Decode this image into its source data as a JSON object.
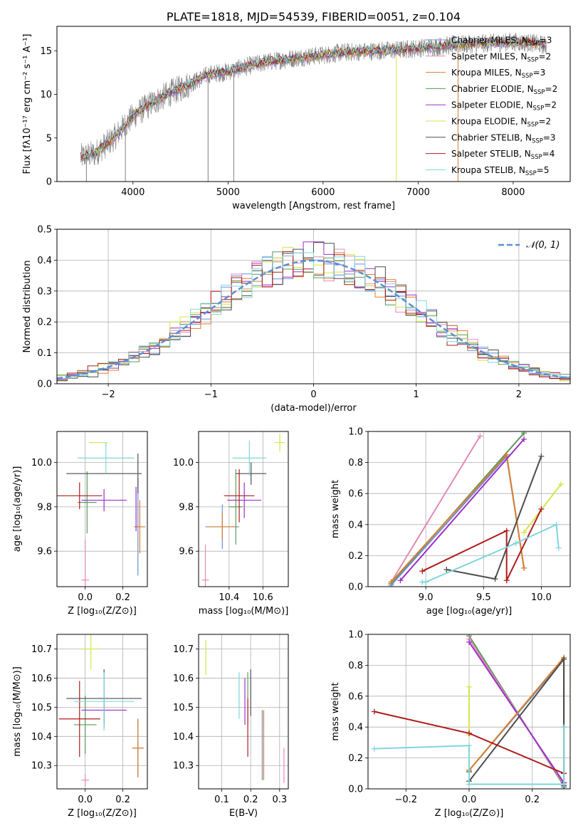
{
  "chart_data": [
    {
      "id": "spectrum",
      "type": "line",
      "title": "PLATE=1818, MJD=54539, FIBERID=0051, z=0.104",
      "xlabel": "wavelength [Angstrom, rest frame]",
      "ylabel": "Flux [fλ10⁻¹⁷ erg cm⁻² s⁻¹ A⁻¹]",
      "xlim": [
        3200,
        8600
      ],
      "ylim": [
        0,
        17.8
      ],
      "xticks": [
        "4000",
        "5000",
        "6000",
        "7000",
        "8000"
      ],
      "yticks": [
        "0",
        "5",
        "10",
        "15"
      ],
      "grid": false,
      "legend_position": "right",
      "legend": [
        {
          "label": "Chabrier MILES, N",
          "sub": "SSP",
          "tail": "=3",
          "color": "#6a8fd4"
        },
        {
          "label": "Salpeter MILES, N",
          "sub": "SSP",
          "tail": "=2",
          "color": "#e589b6"
        },
        {
          "label": "Kroupa MILES, N",
          "sub": "SSP",
          "tail": "=3",
          "color": "#d9802b"
        },
        {
          "label": "Chabrier ELODIE, N",
          "sub": "SSP",
          "tail": "=2",
          "color": "#5a9a5a"
        },
        {
          "label": "Salpeter ELODIE, N",
          "sub": "SSP",
          "tail": "=2",
          "color": "#9b30c9"
        },
        {
          "label": "Kroupa ELODIE, N",
          "sub": "SSP",
          "tail": "=2",
          "color": "#d4e64a"
        },
        {
          "label": "Chabrier STELIB, N",
          "sub": "SSP",
          "tail": "=3",
          "color": "#4d4d4d"
        },
        {
          "label": "Salpeter STELIB, N",
          "sub": "SSP",
          "tail": "=4",
          "color": "#b01c1c"
        },
        {
          "label": "Kroupa STELIB, N",
          "sub": "SSP",
          "tail": "=5",
          "color": "#7fd6dc"
        }
      ],
      "series": [
        {
          "name": "data",
          "color": "#808080",
          "x": [
            3450,
            3600,
            3800,
            4000,
            4200,
            4400,
            4600,
            4800,
            5000,
            5200,
            5400,
            5600,
            5800,
            6000,
            6200,
            6400,
            6600,
            6800,
            7000,
            7200,
            7400,
            7600,
            7800,
            8000,
            8200,
            8350
          ],
          "y": [
            2.8,
            3.2,
            5.0,
            7.5,
            9.0,
            10.2,
            11.2,
            12.3,
            12.6,
            13.2,
            13.7,
            14.0,
            14.3,
            14.5,
            14.8,
            14.9,
            15.0,
            15.1,
            15.3,
            15.5,
            15.7,
            15.8,
            15.9,
            16.0,
            15.9,
            15.6
          ]
        }
      ]
    },
    {
      "id": "residuals",
      "type": "line",
      "xlabel": "(data-model)/error",
      "ylabel": "Normed distribution",
      "xlim": [
        -2.5,
        2.5
      ],
      "ylim": [
        0,
        0.5
      ],
      "xticks": [
        "−2",
        "−1",
        "0",
        "1",
        "2"
      ],
      "yticks": [
        "0.0",
        "0.1",
        "0.2",
        "0.3",
        "0.4",
        "0.5"
      ],
      "grid": true,
      "legend_position": "top-right",
      "legend_label": "𝒩(0, 1)",
      "normal_color": "#5b8fd8",
      "bin_width": 0.1,
      "series": [
        {
          "color": "#6a8fd4",
          "shift": 0.01
        },
        {
          "color": "#e589b6",
          "shift": -0.02
        },
        {
          "color": "#d9802b",
          "shift": 0.03
        },
        {
          "color": "#5a9a5a",
          "shift": -0.01
        },
        {
          "color": "#9b30c9",
          "shift": 0.02
        },
        {
          "color": "#d4e64a",
          "shift": -0.03
        },
        {
          "color": "#4d4d4d",
          "shift": 0.04
        },
        {
          "color": "#b01c1c",
          "shift": -0.04
        },
        {
          "color": "#7fd6dc",
          "shift": 0.0
        }
      ]
    },
    {
      "id": "z-age",
      "type": "scatter",
      "xlabel": "Z [log₁₀(Z/Z⊙)]",
      "ylabel": "age  [log₁₀(age/yr)]",
      "xlim": [
        -0.15,
        0.33
      ],
      "ylim": [
        9.44,
        10.14
      ],
      "xticks": [
        {
          "v": 0.0,
          "t": "0.0"
        },
        {
          "v": 0.2,
          "t": "0.2"
        }
      ],
      "yticks": [
        {
          "v": 9.6,
          "t": "9.6"
        },
        {
          "v": 9.8,
          "t": "9.8"
        },
        {
          "v": 10.0,
          "t": "10.0"
        }
      ],
      "grid": true,
      "points": [
        {
          "x": 0.0,
          "y": 9.47,
          "ex": 0.02,
          "ey": 0.18,
          "color": "#e589b6"
        },
        {
          "x": 0.28,
          "y": 9.71,
          "ex": 0.02,
          "ey": 0.22,
          "color": "#6a8fd4"
        },
        {
          "x": 0.29,
          "y": 9.71,
          "ex": 0.03,
          "ey": 0.12,
          "color": "#d9802b"
        },
        {
          "x": 0.01,
          "y": 9.82,
          "ex": 0.05,
          "ey": 0.14,
          "color": "#5a9a5a"
        },
        {
          "x": 0.1,
          "y": 9.83,
          "ex": 0.12,
          "ey": 0.05,
          "color": "#9b30c9"
        },
        {
          "x": 0.07,
          "y": 10.09,
          "ex": 0.05,
          "ey": 0.0,
          "color": "#d4e64a"
        },
        {
          "x": 0.1,
          "y": 9.95,
          "ex": 0.2,
          "ey": 0.0,
          "color": "#4d4d4d"
        },
        {
          "x": -0.03,
          "y": 9.85,
          "ex": 0.12,
          "ey": 0.06,
          "color": "#b01c1c"
        },
        {
          "x": 0.11,
          "y": 10.02,
          "ex": 0.15,
          "ey": 0.07,
          "color": "#7fd6dc"
        },
        {
          "x": 0.28,
          "y": 9.95,
          "ex": 0.0,
          "ey": 0.09,
          "color": "#4d4d4d"
        },
        {
          "x": 0.27,
          "y": 9.79,
          "ex": 0.0,
          "ey": 0.1,
          "color": "#9b30c9"
        }
      ]
    },
    {
      "id": "mass-age",
      "type": "scatter",
      "xlabel": "mass [log₁₀(M/M⊙)]",
      "ylabel": "",
      "xlim": [
        10.22,
        10.75
      ],
      "ylim": [
        9.44,
        10.14
      ],
      "xticks": [
        {
          "v": 10.4,
          "t": "10.4"
        },
        {
          "v": 10.6,
          "t": "10.6"
        }
      ],
      "yticks": [
        {
          "v": 9.6,
          "t": "9.6"
        },
        {
          "v": 9.8,
          "t": "9.8"
        },
        {
          "v": 10.0,
          "t": "10.0"
        }
      ],
      "grid": true,
      "points": [
        {
          "x": 10.26,
          "y": 9.47,
          "ex": 0.02,
          "ey": 0.16,
          "color": "#e589b6"
        },
        {
          "x": 10.36,
          "y": 9.71,
          "ex": 0.1,
          "ey": 0.1,
          "color": "#6a8fd4"
        },
        {
          "x": 10.36,
          "y": 9.71,
          "ex": 0.08,
          "ey": 0.06,
          "color": "#d9802b"
        },
        {
          "x": 10.44,
          "y": 9.8,
          "ex": 0.04,
          "ey": 0.17,
          "color": "#5a9a5a"
        },
        {
          "x": 10.49,
          "y": 9.83,
          "ex": 0.1,
          "ey": 0.08,
          "color": "#9b30c9"
        },
        {
          "x": 10.7,
          "y": 10.09,
          "ex": 0.03,
          "ey": 0.04,
          "color": "#d4e64a"
        },
        {
          "x": 10.53,
          "y": 9.95,
          "ex": 0.09,
          "ey": 0.05,
          "color": "#4d4d4d"
        },
        {
          "x": 10.46,
          "y": 9.85,
          "ex": 0.09,
          "ey": 0.12,
          "color": "#b01c1c"
        },
        {
          "x": 10.52,
          "y": 10.02,
          "ex": 0.1,
          "ey": 0.08,
          "color": "#7fd6dc"
        }
      ]
    },
    {
      "id": "age-weight",
      "type": "line",
      "xlabel": "age  [log₁₀(age/yr)]",
      "ylabel": "mass weight",
      "xlim": [
        8.5,
        10.25
      ],
      "ylim": [
        0,
        1
      ],
      "xticks": [
        {
          "v": 9.0,
          "t": "9.0"
        },
        {
          "v": 9.5,
          "t": "9.5"
        },
        {
          "v": 10.0,
          "t": "10.0"
        }
      ],
      "yticks": [
        {
          "v": 0.0,
          "t": "0.0"
        },
        {
          "v": 0.2,
          "t": "0.2"
        },
        {
          "v": 0.4,
          "t": "0.4"
        },
        {
          "v": 0.6,
          "t": "0.6"
        },
        {
          "v": 0.8,
          "t": "0.8"
        },
        {
          "v": 1.0,
          "t": "1.0"
        }
      ],
      "grid": true,
      "series": [
        {
          "color": "#e589b6",
          "x": [
            8.7,
            9.47
          ],
          "y": [
            0.03,
            0.97
          ]
        },
        {
          "color": "#5a9a5a",
          "x": [
            8.7,
            9.85
          ],
          "y": [
            0.02,
            0.99
          ]
        },
        {
          "color": "#6a8fd4",
          "x": [
            8.7,
            9.7,
            9.85
          ],
          "y": [
            0.01,
            0.84,
            0.12
          ]
        },
        {
          "color": "#d9802b",
          "x": [
            8.7,
            9.7,
            9.85
          ],
          "y": [
            0.03,
            0.85,
            0.12
          ]
        },
        {
          "color": "#9b30c9",
          "x": [
            8.78,
            9.85
          ],
          "y": [
            0.04,
            0.95
          ]
        },
        {
          "color": "#d4e64a",
          "x": [
            9.85,
            10.17
          ],
          "y": [
            0.35,
            0.66
          ]
        },
        {
          "color": "#4d4d4d",
          "x": [
            9.18,
            9.6,
            10.0
          ],
          "y": [
            0.11,
            0.05,
            0.84
          ]
        },
        {
          "color": "#b01c1c",
          "x": [
            8.97,
            9.7,
            9.7,
            10.0
          ],
          "y": [
            0.1,
            0.36,
            0.04,
            0.5
          ]
        },
        {
          "color": "#7fd6dc",
          "x": [
            8.97,
            9.0,
            9.78,
            10.13,
            10.15
          ],
          "y": [
            0.03,
            0.03,
            0.28,
            0.4,
            0.25
          ]
        }
      ]
    },
    {
      "id": "z-mass",
      "type": "scatter",
      "xlabel": "Z [log₁₀(Z/Z⊙)]",
      "ylabel": "mass [log₁₀(M/M⊙)]",
      "xlim": [
        -0.15,
        0.33
      ],
      "ylim": [
        10.22,
        10.75
      ],
      "xticks": [
        {
          "v": 0.0,
          "t": "0.0"
        },
        {
          "v": 0.2,
          "t": "0.2"
        }
      ],
      "yticks": [
        {
          "v": 10.3,
          "t": "10.3"
        },
        {
          "v": 10.4,
          "t": "10.4"
        },
        {
          "v": 10.5,
          "t": "10.5"
        },
        {
          "v": 10.6,
          "t": "10.6"
        },
        {
          "v": 10.7,
          "t": "10.7"
        }
      ],
      "grid": true,
      "points": [
        {
          "x": 0.0,
          "y": 10.25,
          "ex": 0.02,
          "ey": 0.02,
          "color": "#e589b6"
        },
        {
          "x": 0.28,
          "y": 10.36,
          "ex": 0.03,
          "ey": 0.1,
          "color": "#6a8fd4"
        },
        {
          "x": 0.28,
          "y": 10.36,
          "ex": 0.03,
          "ey": 0.1,
          "color": "#d9802b"
        },
        {
          "x": 0.0,
          "y": 10.44,
          "ex": 0.06,
          "ey": 0.1,
          "color": "#5a9a5a"
        },
        {
          "x": 0.1,
          "y": 10.49,
          "ex": 0.12,
          "ey": 0.05,
          "color": "#9b30c9"
        },
        {
          "x": 0.03,
          "y": 10.7,
          "ex": 0.05,
          "ey": 0.07,
          "color": "#d4e64a"
        },
        {
          "x": 0.1,
          "y": 10.53,
          "ex": 0.2,
          "ey": 0.1,
          "color": "#4d4d4d"
        },
        {
          "x": -0.03,
          "y": 10.46,
          "ex": 0.11,
          "ey": 0.13,
          "color": "#b01c1c"
        },
        {
          "x": 0.1,
          "y": 10.52,
          "ex": 0.16,
          "ey": 0.1,
          "color": "#7fd6dc"
        }
      ]
    },
    {
      "id": "ebv-mass",
      "type": "scatter",
      "xlabel": "E(B-V)",
      "ylabel": "",
      "xlim": [
        0.02,
        0.33
      ],
      "ylim": [
        10.22,
        10.75
      ],
      "xticks": [
        {
          "v": 0.1,
          "t": "0.1"
        },
        {
          "v": 0.2,
          "t": "0.2"
        },
        {
          "v": 0.3,
          "t": "0.3"
        }
      ],
      "yticks": [
        {
          "v": 10.3,
          "t": "10.3"
        },
        {
          "v": 10.4,
          "t": "10.4"
        },
        {
          "v": 10.5,
          "t": "10.5"
        },
        {
          "v": 10.6,
          "t": "10.6"
        },
        {
          "v": 10.7,
          "t": "10.7"
        }
      ],
      "grid": true,
      "points": [
        {
          "x": 0.315,
          "y": 10.3,
          "ex": 0.0,
          "ey": 0.06,
          "color": "#e589b6"
        },
        {
          "x": 0.24,
          "y": 10.37,
          "ex": 0.0,
          "ey": 0.12,
          "color": "#6a8fd4"
        },
        {
          "x": 0.245,
          "y": 10.37,
          "ex": 0.0,
          "ey": 0.12,
          "color": "#d9802b"
        },
        {
          "x": 0.19,
          "y": 10.53,
          "ex": 0.0,
          "ey": 0.09,
          "color": "#5a9a5a"
        },
        {
          "x": 0.18,
          "y": 10.52,
          "ex": 0.0,
          "ey": 0.08,
          "color": "#9b30c9"
        },
        {
          "x": 0.045,
          "y": 10.67,
          "ex": 0.0,
          "ey": 0.06,
          "color": "#d4e64a"
        },
        {
          "x": 0.2,
          "y": 10.55,
          "ex": 0.0,
          "ey": 0.08,
          "color": "#4d4d4d"
        },
        {
          "x": 0.19,
          "y": 10.43,
          "ex": 0.0,
          "ey": 0.1,
          "color": "#b01c1c"
        },
        {
          "x": 0.16,
          "y": 10.54,
          "ex": 0.0,
          "ey": 0.08,
          "color": "#7fd6dc"
        }
      ]
    },
    {
      "id": "z-weight",
      "type": "line",
      "xlabel": "Z [log₁₀(Z/Z⊙)]",
      "ylabel": "mass weight",
      "xlim": [
        -0.32,
        0.32
      ],
      "ylim": [
        0,
        1
      ],
      "xticks": [
        {
          "v": -0.2,
          "t": "−0.2"
        },
        {
          "v": 0.0,
          "t": "0.0"
        },
        {
          "v": 0.2,
          "t": "0.2"
        }
      ],
      "yticks": [
        {
          "v": 0.0,
          "t": "0.0"
        },
        {
          "v": 0.2,
          "t": "0.2"
        },
        {
          "v": 0.4,
          "t": "0.4"
        },
        {
          "v": 0.6,
          "t": "0.6"
        },
        {
          "v": 0.8,
          "t": "0.8"
        },
        {
          "v": 1.0,
          "t": "1.0"
        }
      ],
      "grid": true,
      "series": [
        {
          "color": "#d4e64a",
          "x": [
            0.0,
            0.0
          ],
          "y": [
            0.66,
            0.35
          ]
        },
        {
          "color": "#5a9a5a",
          "x": [
            0.0,
            0.3
          ],
          "y": [
            0.99,
            0.02
          ]
        },
        {
          "color": "#e589b6",
          "x": [
            0.0,
            0.3
          ],
          "y": [
            0.97,
            0.03
          ]
        },
        {
          "color": "#9b30c9",
          "x": [
            0.0,
            0.3
          ],
          "y": [
            0.95,
            0.04
          ]
        },
        {
          "color": "#6a8fd4",
          "x": [
            0.0,
            0.3,
            0.3
          ],
          "y": [
            0.12,
            0.84,
            0.01
          ]
        },
        {
          "color": "#d9802b",
          "x": [
            0.0,
            0.3,
            0.3
          ],
          "y": [
            0.12,
            0.85,
            0.03
          ]
        },
        {
          "color": "#4d4d4d",
          "x": [
            0.0,
            0.0,
            0.3,
            0.3
          ],
          "y": [
            0.11,
            0.05,
            0.84,
            0.02
          ]
        },
        {
          "color": "#b01c1c",
          "x": [
            -0.3,
            0.0,
            0.3
          ],
          "y": [
            0.5,
            0.36,
            0.1
          ]
        },
        {
          "color": "#7fd6dc",
          "x": [
            -0.3,
            0.0,
            0.0,
            0.3,
            0.3
          ],
          "y": [
            0.26,
            0.28,
            0.03,
            0.03,
            0.4
          ]
        }
      ]
    }
  ]
}
